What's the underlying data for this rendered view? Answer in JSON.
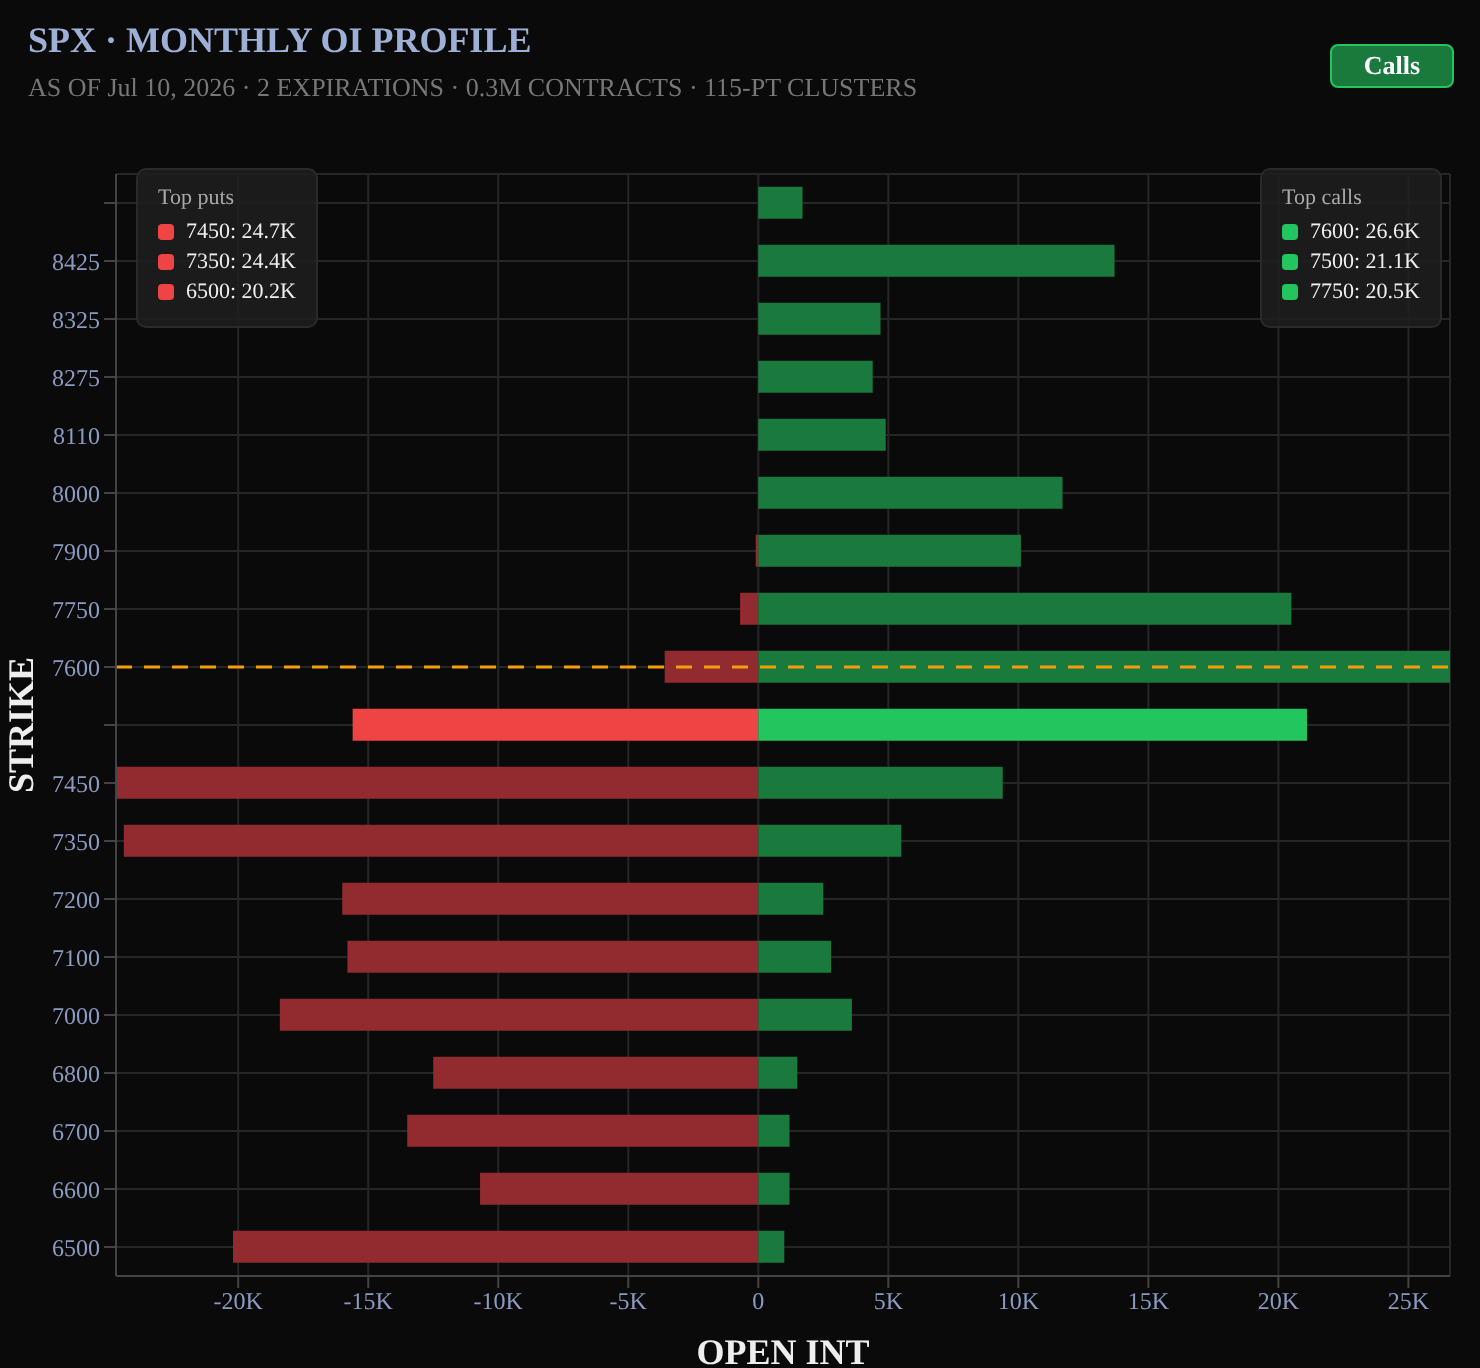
{
  "chart_data": {
    "type": "bar",
    "orientation": "horizontal",
    "stacked": true,
    "title": "SPX · MONTHLY OI PROFILE",
    "subtitle": "AS OF Jul 10, 2026 · 2 EXPIRATIONS · 0.3M CONTRACTS · 115-PT CLUSTERS",
    "xlabel": "OPEN INT",
    "ylabel": "STRIKE",
    "categories": [
      null,
      "8425",
      "8325",
      "8275",
      "8110",
      "8000",
      "7900",
      "7750",
      "7600",
      null,
      "7450",
      "7350",
      "7200",
      "7100",
      "7000",
      "6800",
      "6700",
      "6600",
      "6500"
    ],
    "series": [
      {
        "colors": [
          "#922b2f",
          "#922b2f",
          "#922b2f",
          "#922b2f",
          "#922b2f",
          "#922b2f",
          "#922b2f",
          "#922b2f",
          "#922b2f",
          "#ef4444",
          "#922b2f",
          "#922b2f",
          "#922b2f",
          "#922b2f",
          "#922b2f",
          "#922b2f",
          "#922b2f",
          "#922b2f",
          "#922b2f"
        ],
        "values": [
          0,
          0,
          0,
          0,
          0,
          0,
          -100,
          -700,
          -3600,
          -15600,
          -24700,
          -24400,
          -16000,
          -15800,
          -18400,
          -12500,
          -13500,
          -10700,
          -20200
        ]
      },
      {
        "colors": [
          "#1a7a3e",
          "#1a7a3e",
          "#1a7a3e",
          "#1a7a3e",
          "#1a7a3e",
          "#1a7a3e",
          "#1a7a3e",
          "#1a7a3e",
          "#1a7a3e",
          "#22c55e",
          "#1a7a3e",
          "#1a7a3e",
          "#1a7a3e",
          "#1a7a3e",
          "#1a7a3e",
          "#1a7a3e",
          "#1a7a3e",
          "#1a7a3e",
          "#1a7a3e"
        ],
        "values": [
          1700,
          13700,
          4700,
          4400,
          4900,
          11700,
          10100,
          20500,
          26600,
          21100,
          9400,
          5500,
          2500,
          2800,
          3600,
          1500,
          1200,
          1200,
          1000
        ]
      }
    ],
    "xlim": [
      -24700,
      26600
    ],
    "xticks": [
      {
        "value": -20000,
        "label": "-20K"
      },
      {
        "value": -15000,
        "label": "-15K"
      },
      {
        "value": -10000,
        "label": "-10K"
      },
      {
        "value": -5000,
        "label": "-5K"
      },
      0,
      {
        "value": 5000,
        "label": "5K"
      },
      {
        "value": 10000,
        "label": "10K"
      },
      {
        "value": 15000,
        "label": "15K"
      },
      {
        "value": 20000,
        "label": "20K"
      },
      {
        "value": 25000,
        "label": "25K"
      }
    ],
    "ref_lines": [
      {
        "axis": "y",
        "value": "7600",
        "color": "#f59e0b",
        "line_style": "dashed"
      }
    ],
    "grid": true,
    "annotations": [
      "Calls",
      "Top puts",
      "7450: 24.7K",
      "7350: 24.4K",
      "6500: 20.2K",
      "Top calls",
      "7600: 26.6K",
      "7500: 21.1K",
      "7750: 20.5K"
    ]
  }
}
